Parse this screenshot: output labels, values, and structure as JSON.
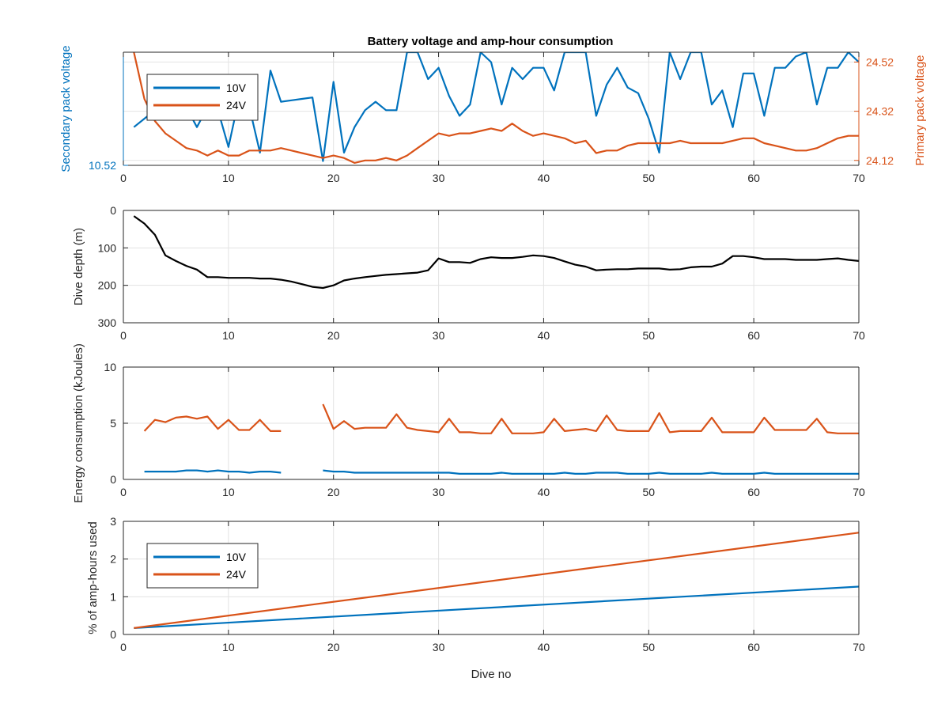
{
  "figure": {
    "title": "Battery voltage and amp-hour consumption",
    "colors": {
      "v10": "#0072BD",
      "v24": "#D95319",
      "depth": "#000000",
      "grid": "#e3e3e3",
      "axis": "#262626"
    }
  },
  "chart_data": [
    {
      "type": "line",
      "title": "Battery voltage and amp-hour consumption",
      "xlabel": "",
      "ylabel_left": "Secondary pack voltage",
      "ylabel_right": "Primary pack voltage",
      "xlim": [
        0,
        70
      ],
      "ylim_left": [
        10.52,
        10.56
      ],
      "ylim_right": [
        24.1,
        24.56
      ],
      "xticks": [
        0,
        10,
        20,
        30,
        40,
        50,
        60,
        70
      ],
      "xtick_labels": [
        "0",
        "10",
        "20",
        "30",
        "40",
        "50",
        "60",
        "70"
      ],
      "yticks_left": [
        10.52
      ],
      "ytick_labels_left": [
        "10.52"
      ],
      "yticks_right": [
        24.12,
        24.32,
        24.52
      ],
      "ytick_labels_right": [
        "24.12",
        "24.32",
        "24.52"
      ],
      "grid": true,
      "legend": {
        "location": "top-left",
        "entries": [
          "10V",
          "24V"
        ]
      },
      "series": [
        {
          "name": "10V",
          "axis": "left",
          "color": "#0072BD",
          "x": [
            1,
            2,
            3,
            4,
            5,
            6,
            7,
            8,
            9,
            10,
            11,
            12,
            13,
            14,
            15,
            16,
            17,
            18,
            19,
            20,
            21,
            22,
            23,
            24,
            25,
            26,
            27,
            28,
            29,
            30,
            31,
            32,
            33,
            34,
            35,
            36,
            37,
            38,
            39,
            40,
            41,
            42,
            43,
            44,
            45,
            46,
            47,
            48,
            49,
            50,
            51,
            52,
            53,
            54,
            55,
            56,
            57,
            58,
            59,
            60,
            61,
            62,
            63,
            64,
            65,
            66,
            67,
            68,
            69,
            70
          ],
          "y": [
            10.5335,
            10.5365,
            10.5395,
            10.5425,
            10.5455,
            10.5405,
            10.5335,
            10.5405,
            10.5395,
            10.5265,
            10.5435,
            10.5405,
            10.5245,
            10.5535,
            10.5425,
            10.543,
            10.5435,
            10.544,
            10.5215,
            10.5495,
            10.5245,
            10.5335,
            10.5395,
            10.5425,
            10.5395,
            10.5395,
            10.56,
            10.56,
            10.5505,
            10.5545,
            10.5445,
            10.5375,
            10.5415,
            10.56,
            10.5565,
            10.5415,
            10.5545,
            10.5505,
            10.5545,
            10.5545,
            10.5465,
            10.56,
            10.56,
            10.56,
            10.5375,
            10.5485,
            10.5545,
            10.5475,
            10.5455,
            10.5365,
            10.5245,
            10.56,
            10.5505,
            10.56,
            10.56,
            10.5415,
            10.5465,
            10.5335,
            10.5525,
            10.5525,
            10.5375,
            10.5545,
            10.5545,
            10.5585,
            10.56,
            10.5415,
            10.5545,
            10.5545,
            10.56,
            10.5565
          ]
        },
        {
          "name": "24V",
          "axis": "right",
          "color": "#D95319",
          "x": [
            1,
            2,
            3,
            4,
            5,
            6,
            7,
            8,
            9,
            10,
            11,
            12,
            13,
            14,
            15,
            16,
            17,
            18,
            19,
            20,
            21,
            22,
            23,
            24,
            25,
            26,
            27,
            28,
            29,
            30,
            31,
            32,
            33,
            34,
            35,
            36,
            37,
            38,
            39,
            40,
            41,
            42,
            43,
            44,
            45,
            46,
            47,
            48,
            49,
            50,
            51,
            52,
            53,
            54,
            55,
            56,
            57,
            58,
            59,
            60,
            61,
            62,
            63,
            64,
            65,
            66,
            67,
            68,
            69,
            70
          ],
          "y": [
            24.56,
            24.37,
            24.28,
            24.23,
            24.2,
            24.17,
            24.16,
            24.14,
            24.16,
            24.14,
            24.14,
            24.16,
            24.16,
            24.16,
            24.17,
            24.16,
            24.15,
            24.14,
            24.13,
            24.14,
            24.13,
            24.11,
            24.12,
            24.12,
            24.13,
            24.12,
            24.14,
            24.17,
            24.2,
            24.23,
            24.22,
            24.23,
            24.23,
            24.24,
            24.25,
            24.24,
            24.27,
            24.24,
            24.22,
            24.23,
            24.22,
            24.21,
            24.19,
            24.2,
            24.15,
            24.16,
            24.16,
            24.18,
            24.19,
            24.19,
            24.19,
            24.19,
            24.2,
            24.19,
            24.19,
            24.19,
            24.19,
            24.2,
            24.21,
            24.21,
            24.19,
            24.18,
            24.17,
            24.16,
            24.16,
            24.17,
            24.19,
            24.21,
            24.22,
            24.22
          ]
        }
      ]
    },
    {
      "type": "line",
      "ylabel": "Dive depth (m)",
      "xlim": [
        0,
        70
      ],
      "ylim": [
        0,
        300
      ],
      "y_reversed": true,
      "xticks": [
        0,
        10,
        20,
        30,
        40,
        50,
        60,
        70
      ],
      "xtick_labels": [
        "0",
        "10",
        "20",
        "30",
        "40",
        "50",
        "60",
        "70"
      ],
      "yticks": [
        0,
        100,
        200,
        300
      ],
      "ytick_labels": [
        "0",
        "100",
        "200",
        "300"
      ],
      "grid": true,
      "series": [
        {
          "color": "#000000",
          "x": [
            1,
            2,
            3,
            4,
            5,
            6,
            7,
            8,
            9,
            10,
            11,
            12,
            13,
            14,
            15,
            16,
            17,
            18,
            19,
            20,
            21,
            22,
            23,
            24,
            25,
            26,
            27,
            28,
            29,
            30,
            31,
            32,
            33,
            34,
            35,
            36,
            37,
            38,
            39,
            40,
            41,
            42,
            43,
            44,
            45,
            46,
            47,
            48,
            49,
            50,
            51,
            52,
            53,
            54,
            55,
            56,
            57,
            58,
            59,
            60,
            61,
            62,
            63,
            64,
            65,
            66,
            67,
            68,
            69,
            70
          ],
          "y": [
            15,
            35,
            65,
            120,
            135,
            148,
            158,
            178,
            178,
            180,
            180,
            180,
            182,
            182,
            185,
            190,
            197,
            204,
            207,
            200,
            187,
            182,
            178,
            175,
            172,
            170,
            168,
            166,
            160,
            128,
            138,
            138,
            140,
            130,
            125,
            127,
            127,
            124,
            120,
            122,
            127,
            136,
            145,
            150,
            160,
            158,
            157,
            157,
            155,
            155,
            155,
            158,
            157,
            152,
            150,
            150,
            142,
            122,
            122,
            125,
            130,
            130,
            130,
            132,
            132,
            132,
            130,
            128,
            132,
            135
          ]
        }
      ]
    },
    {
      "type": "line",
      "ylabel": "Energy consumption (kJoules)",
      "xlim": [
        0,
        70
      ],
      "ylim": [
        0,
        10
      ],
      "xticks": [
        0,
        10,
        20,
        30,
        40,
        50,
        60,
        70
      ],
      "xtick_labels": [
        "0",
        "10",
        "20",
        "30",
        "40",
        "50",
        "60",
        "70"
      ],
      "yticks": [
        0,
        5,
        10
      ],
      "ytick_labels": [
        "0",
        "5",
        "10"
      ],
      "grid": true,
      "series": [
        {
          "color": "#0072BD",
          "x": [
            2,
            3,
            4,
            5,
            6,
            7,
            8,
            9,
            10,
            11,
            12,
            13,
            14,
            15,
            null,
            19,
            20,
            21,
            22,
            23,
            24,
            25,
            26,
            27,
            28,
            29,
            30,
            31,
            32,
            33,
            34,
            35,
            36,
            37,
            38,
            39,
            40,
            41,
            42,
            43,
            44,
            45,
            46,
            47,
            48,
            49,
            50,
            51,
            52,
            53,
            54,
            55,
            56,
            57,
            58,
            59,
            60,
            61,
            62,
            63,
            64,
            65,
            66,
            67,
            68,
            69,
            70
          ],
          "y": [
            0.7,
            0.7,
            0.7,
            0.7,
            0.8,
            0.8,
            0.7,
            0.8,
            0.7,
            0.7,
            0.6,
            0.7,
            0.7,
            0.6,
            null,
            0.8,
            0.7,
            0.7,
            0.6,
            0.6,
            0.6,
            0.6,
            0.6,
            0.6,
            0.6,
            0.6,
            0.6,
            0.6,
            0.5,
            0.5,
            0.5,
            0.5,
            0.6,
            0.5,
            0.5,
            0.5,
            0.5,
            0.5,
            0.6,
            0.5,
            0.5,
            0.6,
            0.6,
            0.6,
            0.5,
            0.5,
            0.5,
            0.6,
            0.5,
            0.5,
            0.5,
            0.5,
            0.6,
            0.5,
            0.5,
            0.5,
            0.5,
            0.6,
            0.5,
            0.5,
            0.5,
            0.5,
            0.5,
            0.5,
            0.5,
            0.5,
            0.5
          ]
        },
        {
          "color": "#D95319",
          "x": [
            2,
            3,
            4,
            5,
            6,
            7,
            8,
            9,
            10,
            11,
            12,
            13,
            14,
            15,
            null,
            19,
            20,
            21,
            22,
            23,
            24,
            25,
            26,
            27,
            28,
            29,
            30,
            31,
            32,
            33,
            34,
            35,
            36,
            37,
            38,
            39,
            40,
            41,
            42,
            43,
            44,
            45,
            46,
            47,
            48,
            49,
            50,
            51,
            52,
            53,
            54,
            55,
            56,
            57,
            58,
            59,
            60,
            61,
            62,
            63,
            64,
            65,
            66,
            67,
            68,
            69,
            70
          ],
          "y": [
            4.3,
            5.3,
            5.1,
            5.5,
            5.6,
            5.4,
            5.6,
            4.5,
            5.3,
            4.4,
            4.4,
            5.3,
            4.3,
            4.3,
            null,
            6.7,
            4.5,
            5.2,
            4.5,
            4.6,
            4.6,
            4.6,
            5.8,
            4.6,
            4.4,
            4.3,
            4.2,
            5.4,
            4.2,
            4.2,
            4.1,
            4.1,
            5.4,
            4.1,
            4.1,
            4.1,
            4.2,
            5.4,
            4.3,
            4.4,
            4.5,
            4.3,
            5.7,
            4.4,
            4.3,
            4.3,
            4.3,
            5.9,
            4.2,
            4.3,
            4.3,
            4.3,
            5.5,
            4.2,
            4.2,
            4.2,
            4.2,
            5.5,
            4.4,
            4.4,
            4.4,
            4.4,
            5.4,
            4.2,
            4.1,
            4.1,
            4.1
          ]
        }
      ]
    },
    {
      "type": "line",
      "xlabel": "Dive no",
      "ylabel": "% of amp-hours used",
      "xlim": [
        0,
        70
      ],
      "ylim": [
        0,
        3
      ],
      "xticks": [
        0,
        10,
        20,
        30,
        40,
        50,
        60,
        70
      ],
      "xtick_labels": [
        "0",
        "10",
        "20",
        "30",
        "40",
        "50",
        "60",
        "70"
      ],
      "yticks": [
        0,
        1,
        2,
        3
      ],
      "ytick_labels": [
        "0",
        "1",
        "2",
        "3"
      ],
      "grid": true,
      "legend": {
        "location": "top-left",
        "entries": [
          "10V",
          "24V"
        ]
      },
      "series": [
        {
          "name": "10V",
          "color": "#0072BD",
          "x": [
            1,
            70
          ],
          "y": [
            0.17,
            1.27
          ]
        },
        {
          "name": "24V",
          "color": "#D95319",
          "x": [
            1,
            70
          ],
          "y": [
            0.17,
            2.7
          ]
        }
      ]
    }
  ]
}
